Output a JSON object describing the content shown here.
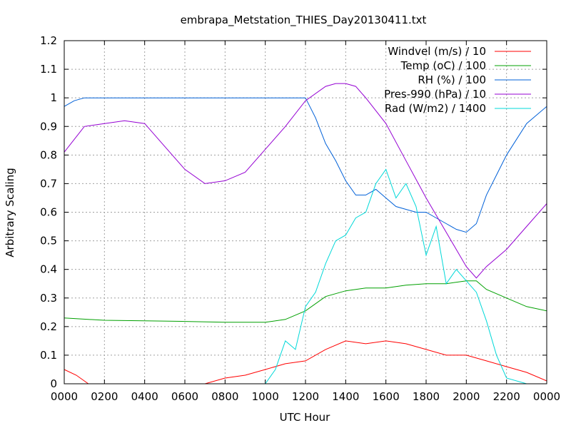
{
  "chart_data": {
    "type": "line",
    "title": "embrapa_Metstation_THIES_Day20130411.txt",
    "xlabel": "UTC Hour",
    "ylabel": "Arbitrary Scaling",
    "xlim": [
      0,
      2400
    ],
    "ylim": [
      0,
      1.2
    ],
    "grid": true,
    "legend_position": "top-right",
    "x_ticks": [
      "0000",
      "0200",
      "0400",
      "0600",
      "0800",
      "1000",
      "1200",
      "1400",
      "1600",
      "1800",
      "2000",
      "2200",
      "0000"
    ],
    "y_ticks": [
      "0",
      "0.1",
      "0.2",
      "0.3",
      "0.4",
      "0.5",
      "0.6",
      "0.7",
      "0.8",
      "0.9",
      "1",
      "1.1",
      "1.2"
    ],
    "series": [
      {
        "name": "Windvel (m/s) / 10",
        "color": "#ff0000",
        "x": [
          0,
          60,
          120,
          300,
          700,
          800,
          900,
          1000,
          1100,
          1200,
          1300,
          1400,
          1500,
          1600,
          1700,
          1800,
          1900,
          2000,
          2100,
          2200,
          2300,
          2400
        ],
        "y": [
          0.05,
          0.03,
          0.0,
          0.0,
          0.0,
          0.02,
          0.03,
          0.05,
          0.07,
          0.08,
          0.12,
          0.15,
          0.14,
          0.15,
          0.14,
          0.12,
          0.1,
          0.1,
          0.08,
          0.06,
          0.04,
          0.01
        ]
      },
      {
        "name": "Temp (oC) / 100",
        "color": "#00a000",
        "x": [
          0,
          200,
          400,
          600,
          800,
          1000,
          1100,
          1200,
          1300,
          1400,
          1500,
          1600,
          1700,
          1800,
          1900,
          2000,
          2050,
          2100,
          2200,
          2300,
          2400
        ],
        "y": [
          0.23,
          0.222,
          0.22,
          0.218,
          0.215,
          0.215,
          0.225,
          0.255,
          0.305,
          0.325,
          0.335,
          0.335,
          0.345,
          0.35,
          0.35,
          0.36,
          0.36,
          0.33,
          0.3,
          0.27,
          0.255
        ]
      },
      {
        "name": "RH (%) / 100",
        "color": "#0060d8",
        "x": [
          0,
          50,
          100,
          600,
          1000,
          1200,
          1250,
          1300,
          1350,
          1400,
          1450,
          1500,
          1550,
          1600,
          1650,
          1700,
          1750,
          1800,
          1850,
          1900,
          1950,
          2000,
          2050,
          2100,
          2150,
          2200,
          2300,
          2400
        ],
        "y": [
          0.97,
          0.99,
          1.0,
          1.0,
          1.0,
          1.0,
          0.93,
          0.84,
          0.78,
          0.71,
          0.66,
          0.66,
          0.68,
          0.65,
          0.62,
          0.61,
          0.6,
          0.6,
          0.58,
          0.56,
          0.54,
          0.53,
          0.56,
          0.66,
          0.73,
          0.8,
          0.91,
          0.97
        ]
      },
      {
        "name": "Pres-990 (hPa) / 10",
        "color": "#9500d3",
        "x": [
          0,
          100,
          200,
          300,
          400,
          500,
          600,
          700,
          800,
          900,
          1000,
          1100,
          1200,
          1300,
          1350,
          1400,
          1450,
          1500,
          1600,
          1700,
          1800,
          1900,
          2000,
          2050,
          2100,
          2200,
          2300,
          2400
        ],
        "y": [
          0.81,
          0.9,
          0.91,
          0.92,
          0.91,
          0.83,
          0.75,
          0.7,
          0.71,
          0.74,
          0.82,
          0.9,
          0.99,
          1.04,
          1.05,
          1.05,
          1.04,
          1.0,
          0.91,
          0.78,
          0.65,
          0.53,
          0.41,
          0.37,
          0.41,
          0.47,
          0.55,
          0.63
        ]
      },
      {
        "name": "Rad (W/m2) / 1400",
        "color": "#00d8d8",
        "x": [
          0,
          1000,
          1050,
          1100,
          1150,
          1200,
          1250,
          1300,
          1350,
          1400,
          1450,
          1500,
          1550,
          1600,
          1650,
          1700,
          1750,
          1800,
          1850,
          1900,
          1950,
          2000,
          2050,
          2100,
          2150,
          2200,
          2300,
          2400
        ],
        "y": [
          0.0,
          0.0,
          0.05,
          0.15,
          0.12,
          0.27,
          0.32,
          0.42,
          0.5,
          0.52,
          0.58,
          0.6,
          0.7,
          0.75,
          0.65,
          0.7,
          0.62,
          0.45,
          0.55,
          0.35,
          0.4,
          0.36,
          0.32,
          0.22,
          0.1,
          0.02,
          0.0,
          0.0
        ]
      }
    ]
  }
}
